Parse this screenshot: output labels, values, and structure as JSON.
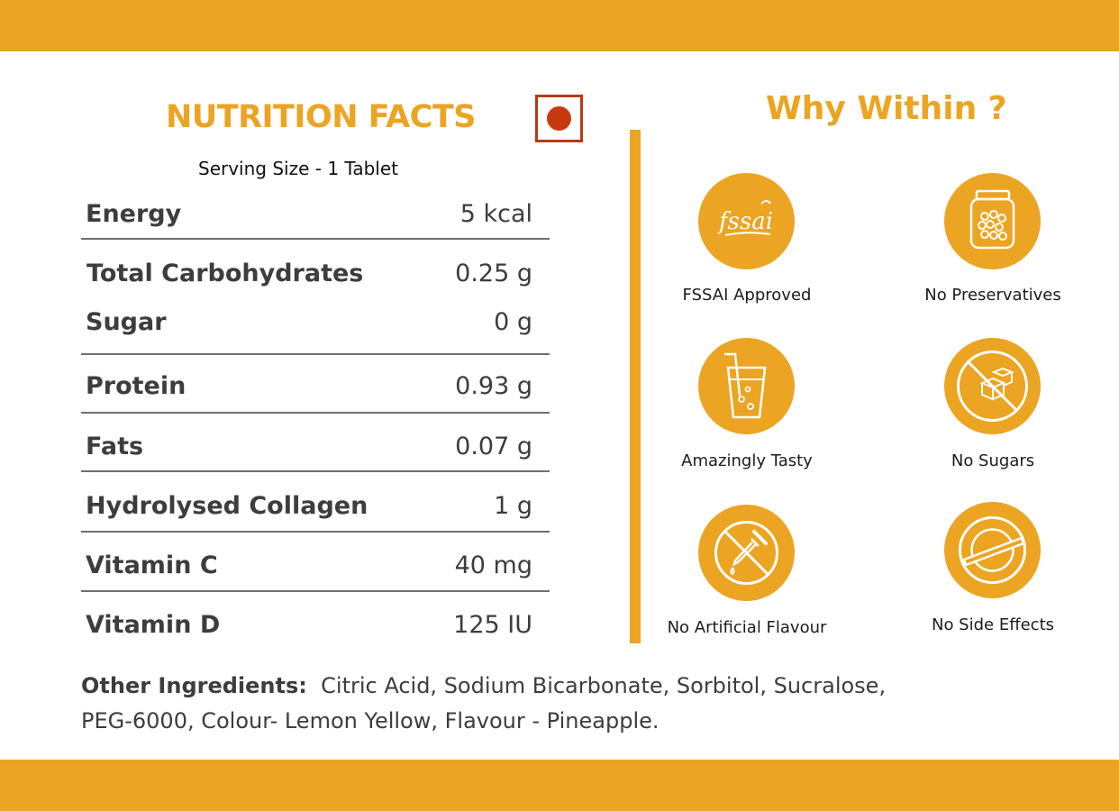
{
  "colors": {
    "accent": "#eca423",
    "veg_mark": "#c73a10",
    "text": "#3d3d3d"
  },
  "nutrition": {
    "title": "NUTRITION FACTS",
    "serving_size": "Serving Size - 1 Tablet",
    "rows": [
      {
        "name": "Energy",
        "value": "5 kcal"
      },
      {
        "name": "Total Carbohydrates",
        "value": "0.25 g"
      },
      {
        "name": "Sugar",
        "value": "0 g"
      },
      {
        "name": "Protein",
        "value": "0.93 g"
      },
      {
        "name": "Fats",
        "value": "0.07 g"
      },
      {
        "name": "Hydrolysed Collagen",
        "value": "1 g"
      },
      {
        "name": "Vitamin C",
        "value": "40 mg"
      },
      {
        "name": "Vitamin D",
        "value": "125 IU"
      }
    ]
  },
  "why": {
    "title": "Why Within ?",
    "features": [
      {
        "label": "FSSAI Approved",
        "icon": "fssai-logo-icon",
        "logo_text": "fssai"
      },
      {
        "label": "No Preservatives",
        "icon": "jar-icon"
      },
      {
        "label": "Amazingly Tasty",
        "icon": "drink-glass-icon"
      },
      {
        "label": "No Sugars",
        "icon": "no-sugar-cubes-icon"
      },
      {
        "label": "No Artificial Flavour",
        "icon": "no-dropper-icon"
      },
      {
        "label": "No Side Effects",
        "icon": "no-pill-icon"
      }
    ]
  },
  "ingredients": {
    "lead": "Other Ingredients:",
    "text": "Citric Acid, Sodium Bicarbonate, Sorbitol, Sucralose, PEG-6000, Colour- Lemon Yellow, Flavour - Pineapple."
  }
}
